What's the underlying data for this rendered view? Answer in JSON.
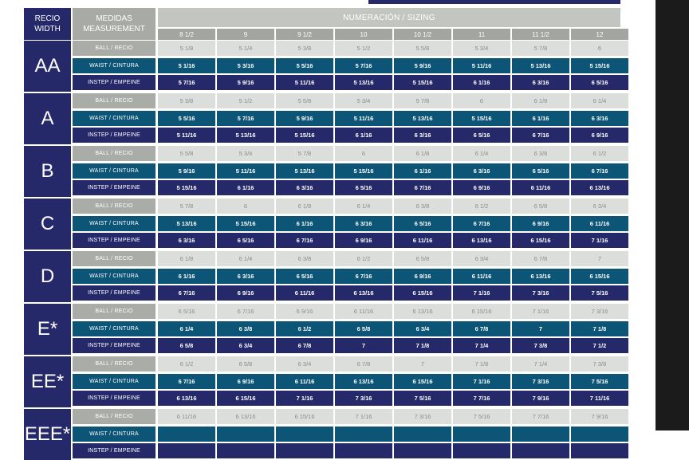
{
  "header": {
    "width_label_line1": "RECIO",
    "width_label_line2": "WIDTH",
    "measure_label_line1": "MEDIDAS",
    "measure_label_line2": "MEASUREMENT",
    "sizing_label": "NUMERACIÓN / SIZING"
  },
  "sizes": [
    "8 1/2",
    "9",
    "9 1/2",
    "10",
    "10 1/2",
    "11",
    "11 1/2",
    "12"
  ],
  "measurements": {
    "ball": "BALL / RECIO",
    "waist": "WAIST / CINTURA",
    "instep": "INSTEP / EMPEINE"
  },
  "groups": [
    {
      "name": "AA",
      "ball": [
        "5 1/8",
        "5 1/4",
        "5 3/8",
        "5 1/2",
        "5 5/8",
        "5 3/4",
        "5 7/8",
        "6"
      ],
      "waist": [
        "5 1/16",
        "5 3/16",
        "5 5/16",
        "5 7/16",
        "5 9/16",
        "5 11/16",
        "5 13/16",
        "5 15/16"
      ],
      "instep": [
        "5 7/16",
        "5 9/16",
        "5 11/16",
        "5 13/16",
        "5 15/16",
        "6 1/16",
        "6 3/16",
        "6 5/16"
      ]
    },
    {
      "name": "A",
      "ball": [
        "5 3/8",
        "5 1/2",
        "5 5/8",
        "5 3/4",
        "5 7/8",
        "6",
        "6 1/8",
        "6 1/4"
      ],
      "waist": [
        "5 5/16",
        "5 7/16",
        "5 9/16",
        "5 11/16",
        "5 13/16",
        "5 15/16",
        "6 1/16",
        "6 3/16"
      ],
      "instep": [
        "5 11/16",
        "5 13/16",
        "5 15/16",
        "6 1/16",
        "6 3/16",
        "6 5/16",
        "6 7/16",
        "6 9/16"
      ]
    },
    {
      "name": "B",
      "ball": [
        "5 5/8",
        "5 3/4",
        "5 7/8",
        "6",
        "6 1/8",
        "6 1/4",
        "6 3/8",
        "6 1/2"
      ],
      "waist": [
        "5 9/16",
        "5 11/16",
        "5 13/16",
        "5 15/16",
        "6 1/16",
        "6 3/16",
        "6 5/16",
        "6 7/16"
      ],
      "instep": [
        "5 15/16",
        "6 1/16",
        "6 3/16",
        "6 5/16",
        "6 7/16",
        "6 9/16",
        "6 11/16",
        "6 13/16"
      ]
    },
    {
      "name": "C",
      "ball": [
        "5 7/8",
        "6",
        "6 1/8",
        "6 1/4",
        "6 3/8",
        "6 1/2",
        "6 5/8",
        "6 3/4"
      ],
      "waist": [
        "5 13/16",
        "5 15/16",
        "6 1/16",
        "6 3/16",
        "6 5/16",
        "6 7/16",
        "6 9/16",
        "6 11/16"
      ],
      "instep": [
        "6 3/16",
        "6 5/16",
        "6 7/16",
        "6 9/16",
        "6 11/16",
        "6 13/16",
        "6 15/16",
        "7 1/16"
      ]
    },
    {
      "name": "D",
      "ball": [
        "6 1/8",
        "6 1/4",
        "6 3/8",
        "6 1/2",
        "6 5/8",
        "6 3/4",
        "6 7/8",
        "7"
      ],
      "waist": [
        "6 1/16",
        "6 3/16",
        "6 5/16",
        "6 7/16",
        "6 9/16",
        "6 11/16",
        "6 13/16",
        "6 15/16"
      ],
      "instep": [
        "6 7/16",
        "6 9/16",
        "6 11/16",
        "6 13/16",
        "6 15/16",
        "7 1/16",
        "7 3/16",
        "7 5/16"
      ]
    },
    {
      "name": "E*",
      "ball": [
        "6 5/16",
        "6 7/16",
        "6 9/16",
        "6 11/16",
        "6 13/16",
        "6 15/16",
        "7 1/16",
        "7 3/16"
      ],
      "waist": [
        "6 1/4",
        "6 3/8",
        "6 1/2",
        "6 5/8",
        "6 3/4",
        "6 7/8",
        "7",
        "7 1/8"
      ],
      "instep": [
        "6 5/8",
        "6 3/4",
        "6 7/8",
        "7",
        "7 1/8",
        "7 1/4",
        "7 3/8",
        "7 1/2"
      ]
    },
    {
      "name": "EE*",
      "ball": [
        "6 1/2",
        "6 5/8",
        "6 3/4",
        "6 7/8",
        "7",
        "7 1/8",
        "7 1/4",
        "7 3/8"
      ],
      "waist": [
        "6 7/16",
        "6 9/16",
        "6 11/16",
        "6 13/16",
        "6 15/16",
        "7 1/16",
        "7 3/16",
        "7 5/16"
      ],
      "instep": [
        "6 13/16",
        "6 15/16",
        "7 1/16",
        "7 3/16",
        "7 5/16",
        "7 7/16",
        "7 9/16",
        "7 11/16"
      ]
    },
    {
      "name": "EEE*",
      "ball": [
        "6 11/16",
        "6 13/16",
        "6 15/16",
        "7 1/16",
        "7 3/16",
        "7 5/16",
        "7 7/16",
        "7 9/16"
      ],
      "waist": [],
      "instep": []
    }
  ]
}
